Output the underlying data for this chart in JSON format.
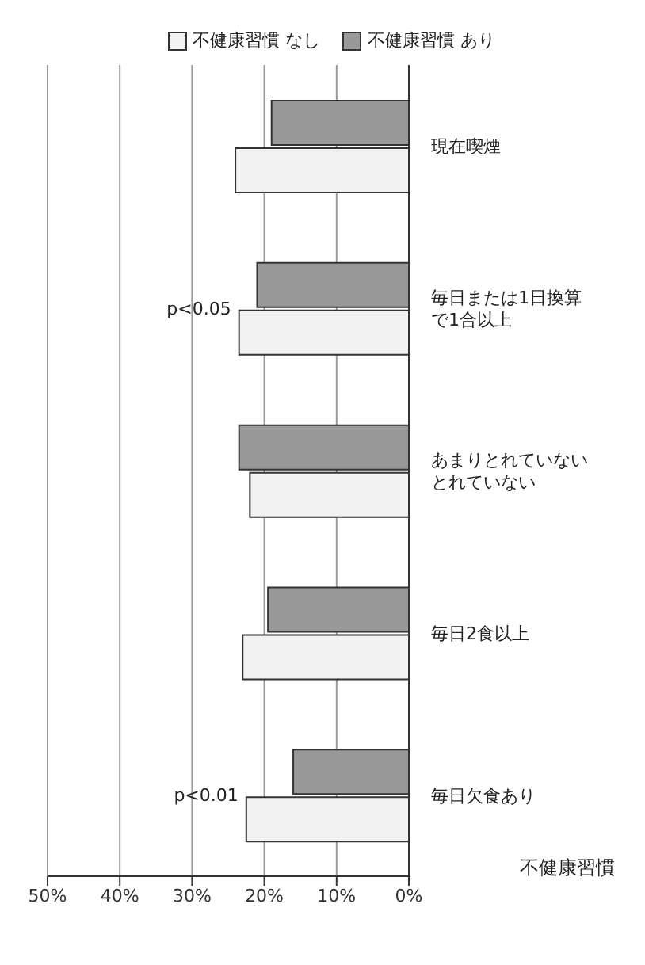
{
  "chart_data": {
    "type": "bar",
    "orientation": "horizontal",
    "xlabel": "不健康習慣",
    "categories": [
      "現在喫煙",
      "毎日または1日換算で1合以上",
      "あまりとれていないとれていない",
      "毎日2食以上",
      "毎日欠食あり"
    ],
    "series": [
      {
        "name": "不健康習慣 なし",
        "color": "#f2f2f2",
        "values": [
          24,
          23.5,
          22,
          23,
          22.5
        ]
      },
      {
        "name": "不健康習慣 あり",
        "color": "#999999",
        "values": [
          19,
          21,
          23.5,
          19.5,
          16
        ]
      }
    ],
    "xlim": [
      50,
      0
    ],
    "xticks": [
      {
        "value": 50,
        "label": "50%"
      },
      {
        "value": 40,
        "label": "40%"
      },
      {
        "value": 30,
        "label": "30%"
      },
      {
        "value": 20,
        "label": "20%"
      },
      {
        "value": 10,
        "label": "10%"
      },
      {
        "value": 0,
        "label": "0%"
      }
    ],
    "grid": "x",
    "legend": "top",
    "annotations": [
      {
        "text": "p<0.01",
        "x": 22.5,
        "y": "毎日欠食あり"
      },
      {
        "text": "p<0.05",
        "x": 23.5,
        "y": "毎日または1日換算で1合以上"
      }
    ]
  }
}
